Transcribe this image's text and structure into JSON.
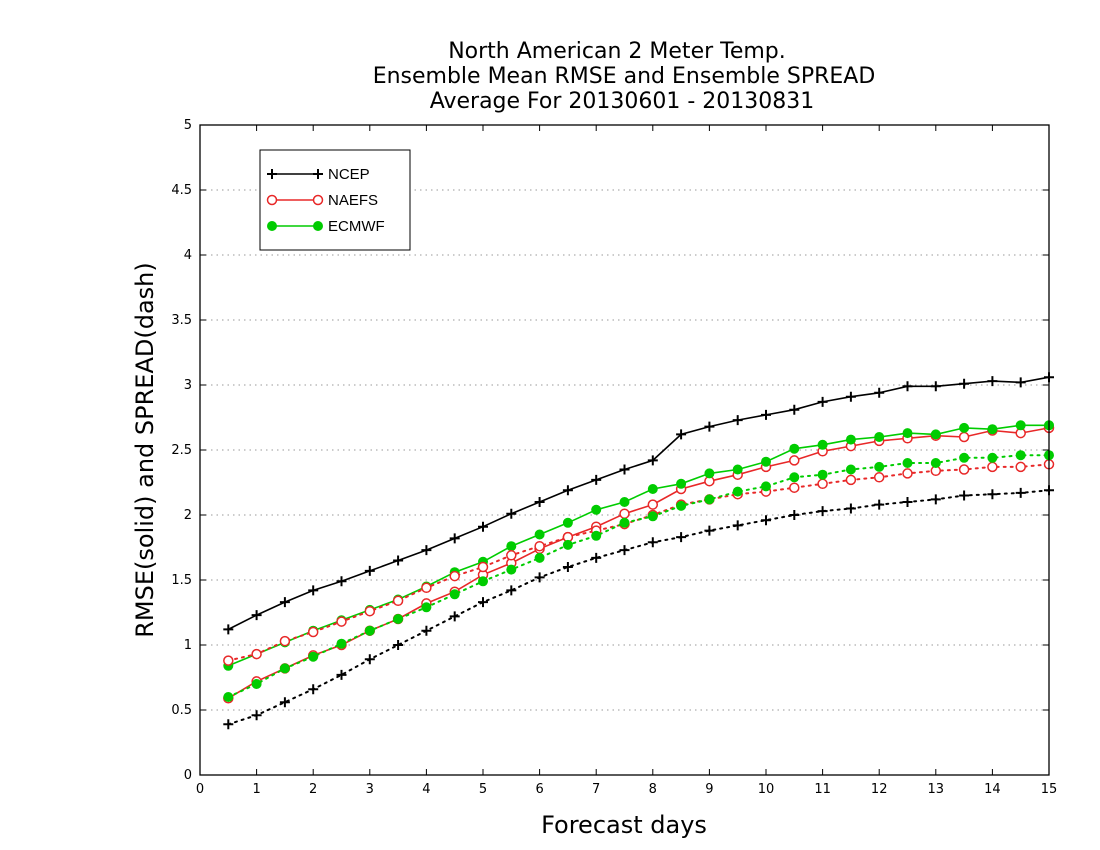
{
  "chart_data": {
    "type": "line",
    "title": [
      "North American 2 Meter Temp.",
      "Ensemble Mean RMSE and Ensemble SPREAD",
      "Average For 20130601 - 20130831"
    ],
    "xlabel": "Forecast days",
    "ylabel": "RMSE(solid) and SPREAD(dash)",
    "xlim": [
      0,
      15
    ],
    "ylim": [
      0,
      5
    ],
    "xticks": [
      "0",
      "1",
      "2",
      "3",
      "4",
      "5",
      "6",
      "7",
      "8",
      "9",
      "10",
      "11",
      "12",
      "13",
      "14",
      "15"
    ],
    "yticks": [
      "0",
      "0.5",
      "1",
      "1.5",
      "2",
      "2.5",
      "3",
      "3.5",
      "4",
      "4.5",
      "5"
    ],
    "ytick_values": [
      0,
      0.5,
      1,
      1.5,
      2,
      2.5,
      3,
      3.5,
      4,
      4.5,
      5
    ],
    "grid": "horizontal dotted",
    "legend_position": "top-left",
    "x": [
      0.5,
      1,
      1.5,
      2,
      2.5,
      3,
      3.5,
      4,
      4.5,
      5,
      5.5,
      6,
      6.5,
      7,
      7.5,
      8,
      8.5,
      9,
      9.5,
      10,
      10.5,
      11,
      11.5,
      12,
      12.5,
      13,
      13.5,
      14,
      14.5,
      15
    ],
    "series": [
      {
        "name": "NCEP",
        "color": "#000000",
        "marker": "plus",
        "style": "solid",
        "values": [
          1.12,
          1.23,
          1.33,
          1.42,
          1.49,
          1.57,
          1.65,
          1.73,
          1.82,
          1.91,
          2.01,
          2.1,
          2.19,
          2.27,
          2.35,
          2.42,
          2.62,
          2.68,
          2.73,
          2.77,
          2.81,
          2.87,
          2.91,
          2.94,
          2.99,
          2.99,
          3.01,
          3.03,
          3.02,
          3.06
        ]
      },
      {
        "name": "NAEFS",
        "color": "#e82828",
        "marker": "open-circle",
        "style": "solid",
        "values": [
          0.59,
          0.72,
          0.82,
          0.92,
          1.0,
          1.11,
          1.2,
          1.32,
          1.41,
          1.54,
          1.63,
          1.74,
          1.83,
          1.91,
          2.01,
          2.08,
          2.2,
          2.26,
          2.31,
          2.37,
          2.42,
          2.49,
          2.53,
          2.57,
          2.59,
          2.61,
          2.6,
          2.65,
          2.63,
          2.67
        ]
      },
      {
        "name": "ECMWF",
        "color": "#00cc00",
        "marker": "filled-circle",
        "style": "solid",
        "values": [
          0.84,
          0.93,
          1.02,
          1.11,
          1.19,
          1.27,
          1.35,
          1.45,
          1.56,
          1.64,
          1.76,
          1.85,
          1.94,
          2.04,
          2.1,
          2.2,
          2.24,
          2.32,
          2.35,
          2.41,
          2.51,
          2.54,
          2.58,
          2.6,
          2.63,
          2.62,
          2.67,
          2.66,
          2.69,
          2.69
        ]
      },
      {
        "name": "NCEP",
        "color": "#000000",
        "marker": "plus",
        "style": "dotted",
        "values": [
          0.39,
          0.46,
          0.56,
          0.66,
          0.77,
          0.89,
          1.0,
          1.11,
          1.22,
          1.33,
          1.42,
          1.52,
          1.6,
          1.67,
          1.73,
          1.79,
          1.83,
          1.88,
          1.92,
          1.96,
          2.0,
          2.03,
          2.05,
          2.08,
          2.1,
          2.12,
          2.15,
          2.16,
          2.17,
          2.19
        ]
      },
      {
        "name": "NAEFS",
        "color": "#e82828",
        "marker": "open-circle",
        "style": "dotted",
        "values": [
          0.88,
          0.93,
          1.03,
          1.1,
          1.18,
          1.26,
          1.34,
          1.44,
          1.53,
          1.6,
          1.69,
          1.76,
          1.83,
          1.88,
          1.93,
          2.0,
          2.08,
          2.12,
          2.16,
          2.18,
          2.21,
          2.24,
          2.27,
          2.29,
          2.32,
          2.34,
          2.35,
          2.37,
          2.37,
          2.39
        ]
      },
      {
        "name": "ECMWF",
        "color": "#00cc00",
        "marker": "filled-circle",
        "style": "dotted",
        "values": [
          0.6,
          0.7,
          0.82,
          0.91,
          1.01,
          1.11,
          1.2,
          1.29,
          1.39,
          1.49,
          1.58,
          1.67,
          1.77,
          1.84,
          1.94,
          1.99,
          2.07,
          2.12,
          2.18,
          2.22,
          2.29,
          2.31,
          2.35,
          2.37,
          2.4,
          2.4,
          2.44,
          2.44,
          2.46,
          2.46
        ]
      }
    ]
  }
}
